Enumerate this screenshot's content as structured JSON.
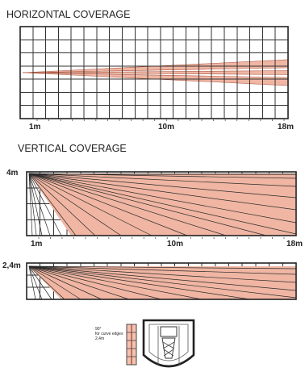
{
  "horizontal": {
    "title": "HORIZONTAL COVERAGE",
    "label_start": "1m",
    "label_mid": "10m",
    "label_end": "18m"
  },
  "vertical": {
    "title": "VERTICAL COVERAGE",
    "height_label_top": "4m",
    "label_start": "1m",
    "label_mid": "10m",
    "label_end": "18m",
    "height_label_bottom": "2,4m"
  },
  "mounting_legend": {
    "line1": "90°",
    "line2": "for curve edges",
    "line3": "2,4m"
  },
  "colors": {
    "zone_fill": "#f0b6a3",
    "zone_stroke": "#b05a45",
    "grid": "#333333"
  }
}
